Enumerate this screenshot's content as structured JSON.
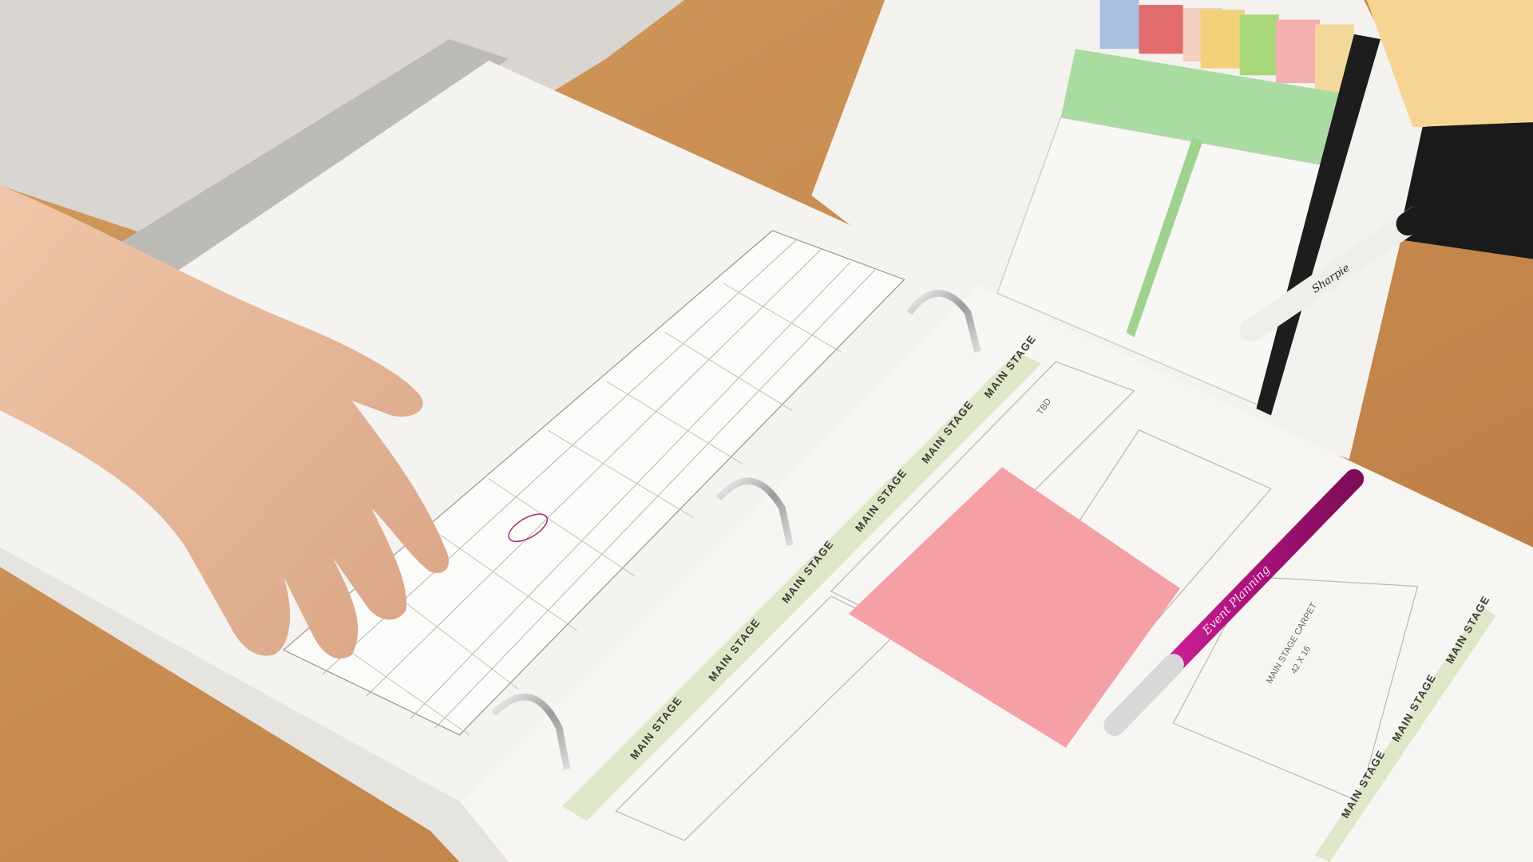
{
  "scene": {
    "description_labels": {
      "main_stage": "MAIN STAGE",
      "carpet_title": "MAIN STAGE CARPET",
      "carpet_size": "42 X 16",
      "tbd": "TBD",
      "pen_brand": "Sharpie",
      "pen_print": "Event Planning"
    },
    "colors": {
      "table_wood": "#c98a50",
      "paper": "#f6f5f2",
      "sticky_note_pink": "#f4a0a6",
      "pen_magenta": "#c0188f",
      "sticky_note_yellow": "#f6d594",
      "skin": "#e9b99a",
      "schedule_green": "#a9dca0",
      "label_band": "#dfe7c9"
    }
  }
}
